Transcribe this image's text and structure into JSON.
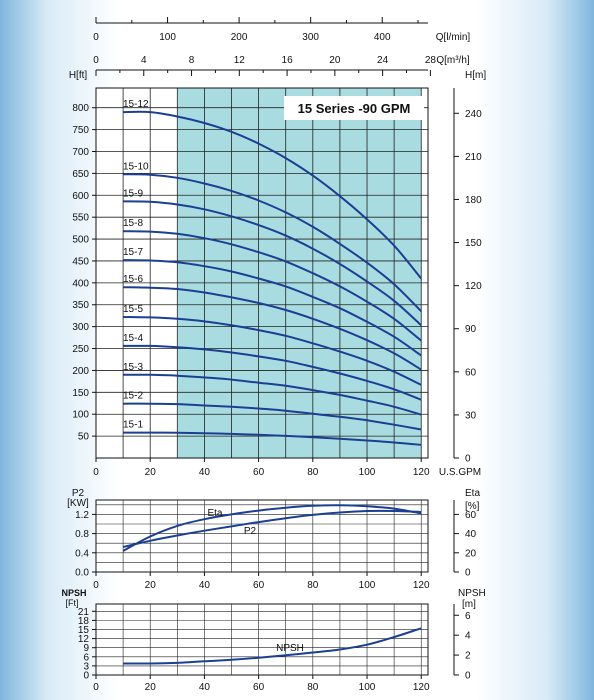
{
  "chart_data": [
    {
      "id": "head",
      "type": "line",
      "title": "15 Series -90 GPM",
      "top_axis_q_lmin": {
        "label": "Q[l/min]",
        "ticks": [
          0,
          100,
          200,
          300,
          400
        ],
        "lim": [
          0,
          464
        ]
      },
      "top_axis_q_m3h": {
        "label": "Q[m³/h]",
        "ticks": [
          0,
          4,
          8,
          12,
          16,
          20,
          24,
          28
        ],
        "lim": [
          0,
          27.8
        ]
      },
      "xlabel": "U.S.GPM",
      "xticks": [
        0,
        20,
        40,
        60,
        80,
        100,
        120
      ],
      "xlim": [
        0,
        122.5
      ],
      "ylabel": "H[ft]",
      "yticks": [
        50,
        100,
        150,
        200,
        250,
        300,
        350,
        400,
        450,
        500,
        550,
        600,
        650,
        700,
        750,
        800
      ],
      "ylim": [
        0,
        845
      ],
      "y2label": "H[m]",
      "y2ticks": [
        0,
        30,
        60,
        90,
        120,
        150,
        180,
        210,
        240
      ],
      "y2lim": [
        0,
        257.6
      ],
      "highlight_range_gpm": [
        30,
        120
      ],
      "series": [
        {
          "name": "15-12",
          "x": [
            10,
            20,
            30,
            40,
            50,
            60,
            70,
            80,
            90,
            100,
            110,
            120
          ],
          "y": [
            790,
            790,
            780,
            765,
            745,
            718,
            685,
            645,
            598,
            545,
            485,
            410
          ]
        },
        {
          "name": "15-10",
          "x": [
            10,
            20,
            30,
            40,
            50,
            60,
            70,
            80,
            90,
            100,
            110,
            120
          ],
          "y": [
            648,
            647,
            640,
            627,
            610,
            588,
            561,
            528,
            489,
            446,
            397,
            335
          ]
        },
        {
          "name": "15-9",
          "x": [
            10,
            20,
            30,
            40,
            50,
            60,
            70,
            80,
            90,
            100,
            110,
            120
          ],
          "y": [
            586,
            585,
            579,
            568,
            552,
            532,
            508,
            478,
            443,
            403,
            359,
            303
          ]
        },
        {
          "name": "15-8",
          "x": [
            10,
            20,
            30,
            40,
            50,
            60,
            70,
            80,
            90,
            100,
            110,
            120
          ],
          "y": [
            518,
            517,
            512,
            502,
            488,
            470,
            449,
            422,
            392,
            357,
            318,
            268
          ]
        },
        {
          "name": "15-7",
          "x": [
            10,
            20,
            30,
            40,
            50,
            60,
            70,
            80,
            90,
            100,
            110,
            120
          ],
          "y": [
            452,
            451,
            447,
            438,
            426,
            410,
            392,
            368,
            342,
            311,
            277,
            234
          ]
        },
        {
          "name": "15-6",
          "x": [
            10,
            20,
            30,
            40,
            50,
            60,
            70,
            80,
            90,
            100,
            110,
            120
          ],
          "y": [
            390,
            389,
            386,
            378,
            367,
            354,
            338,
            318,
            295,
            269,
            239,
            202
          ]
        },
        {
          "name": "15-5",
          "x": [
            10,
            20,
            30,
            40,
            50,
            60,
            70,
            80,
            90,
            100,
            110,
            120
          ],
          "y": [
            322,
            321,
            318,
            312,
            303,
            292,
            279,
            262,
            243,
            222,
            197,
            167
          ]
        },
        {
          "name": "15-4",
          "x": [
            10,
            20,
            30,
            40,
            50,
            60,
            70,
            80,
            90,
            100,
            110,
            120
          ],
          "y": [
            256,
            256,
            253,
            248,
            241,
            232,
            222,
            208,
            193,
            176,
            157,
            133
          ]
        },
        {
          "name": "15-3",
          "x": [
            10,
            20,
            30,
            40,
            50,
            60,
            70,
            80,
            90,
            100,
            110,
            120
          ],
          "y": [
            190,
            190,
            188,
            184,
            179,
            172,
            165,
            155,
            144,
            131,
            117,
            99
          ]
        },
        {
          "name": "15-2",
          "x": [
            10,
            20,
            30,
            40,
            50,
            60,
            70,
            80,
            90,
            100,
            110,
            120
          ],
          "y": [
            124,
            124,
            123,
            120,
            117,
            113,
            108,
            101,
            94,
            86,
            76,
            65
          ]
        },
        {
          "name": "15-1",
          "x": [
            10,
            20,
            30,
            40,
            50,
            60,
            70,
            80,
            90,
            100,
            110,
            120
          ],
          "y": [
            58,
            58,
            57.5,
            56.5,
            55,
            53,
            50.5,
            47.5,
            44,
            40,
            35.5,
            30
          ]
        }
      ]
    },
    {
      "id": "power",
      "type": "line",
      "ylabel": "P2",
      "yunit": "[KW]",
      "yticks": [
        0.0,
        0.4,
        0.8,
        1.2
      ],
      "ylim": [
        0,
        1.5
      ],
      "y2label": "Eta",
      "y2unit": "[%]",
      "y2ticks": [
        0,
        20,
        40,
        60
      ],
      "y2lim": [
        0,
        75
      ],
      "xticks": [
        0,
        20,
        40,
        60,
        80,
        100,
        120
      ],
      "xlim": [
        0,
        122.5
      ],
      "series": [
        {
          "name": "P2",
          "axis": "left",
          "x": [
            10,
            20,
            30,
            40,
            50,
            60,
            70,
            80,
            90,
            100,
            110,
            120
          ],
          "y": [
            0.52,
            0.65,
            0.76,
            0.86,
            0.95,
            1.04,
            1.12,
            1.19,
            1.24,
            1.27,
            1.27,
            1.25
          ]
        },
        {
          "name": "Eta",
          "axis": "right",
          "x": [
            10,
            20,
            30,
            40,
            50,
            60,
            70,
            80,
            90,
            100,
            110,
            120
          ],
          "y": [
            22,
            37,
            48,
            55,
            60,
            64,
            67,
            69,
            69.5,
            68.5,
            66,
            61
          ]
        }
      ]
    },
    {
      "id": "npsh",
      "type": "line",
      "ylabel": "NPSH",
      "yunit": "[Ft]",
      "yticks": [
        0,
        3,
        6,
        9,
        12,
        15,
        18,
        21
      ],
      "ylim": [
        0,
        23.4
      ],
      "y2label": "NPSH",
      "y2unit": "[m]",
      "y2ticks": [
        0,
        2,
        4,
        6
      ],
      "y2lim": [
        0,
        7.13
      ],
      "xticks": [
        0,
        20,
        40,
        60,
        80,
        100,
        120
      ],
      "xlim": [
        0,
        122.5
      ],
      "series": [
        {
          "name": "NPSH",
          "x": [
            10,
            20,
            30,
            40,
            50,
            60,
            70,
            80,
            90,
            100,
            110,
            120
          ],
          "y": [
            3.8,
            3.8,
            4.0,
            4.5,
            5.0,
            5.7,
            6.5,
            7.4,
            8.4,
            10.0,
            12.5,
            15.4
          ]
        }
      ]
    }
  ]
}
